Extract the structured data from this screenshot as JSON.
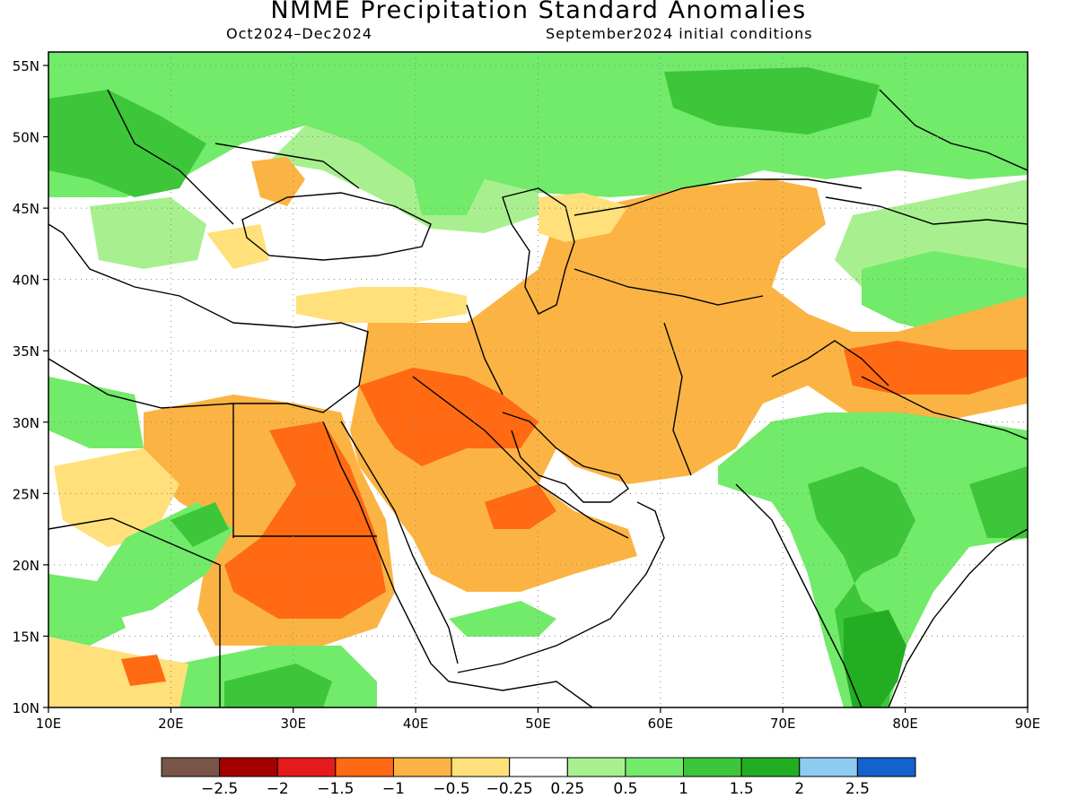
{
  "title": "NMME Precipitation Standard Anomalies",
  "subtitle_left": "Oct2024–Dec2024",
  "subtitle_right": "September2024 initial conditions",
  "lon_ticks": [
    10,
    20,
    30,
    40,
    50,
    60,
    70,
    80,
    90
  ],
  "lon_labels": [
    "10E",
    "20E",
    "30E",
    "40E",
    "50E",
    "60E",
    "70E",
    "80E",
    "90E"
  ],
  "lat_ticks": [
    10,
    15,
    20,
    25,
    30,
    35,
    40,
    45,
    50,
    55
  ],
  "lat_labels": [
    "10N",
    "15N",
    "20N",
    "25N",
    "30N",
    "35N",
    "40N",
    "45N",
    "50N",
    "55N"
  ],
  "colorbar": {
    "colors": [
      "#795548",
      "#a50000",
      "#e41a1c",
      "#ff6a13",
      "#fbb443",
      "#ffe07a",
      "#ffffff",
      "#a8f08f",
      "#72ea6a",
      "#3ec63a",
      "#22ad22",
      "#8ecbf0",
      "#1461d0"
    ],
    "labels": [
      "−2.5",
      "−2",
      "−1.5",
      "−1",
      "−0.5",
      "−0.25",
      "0.25",
      "0.5",
      "1",
      "1.5",
      "2",
      "2.5"
    ]
  },
  "palette": {
    "dark_orange": "#ff6a13",
    "orange": "#fbb443",
    "light_orange": "#ffe07a",
    "light_green": "#a8f08f",
    "green": "#72ea6a",
    "mid_green": "#3ec63a",
    "dark_green": "#22ad22"
  }
}
